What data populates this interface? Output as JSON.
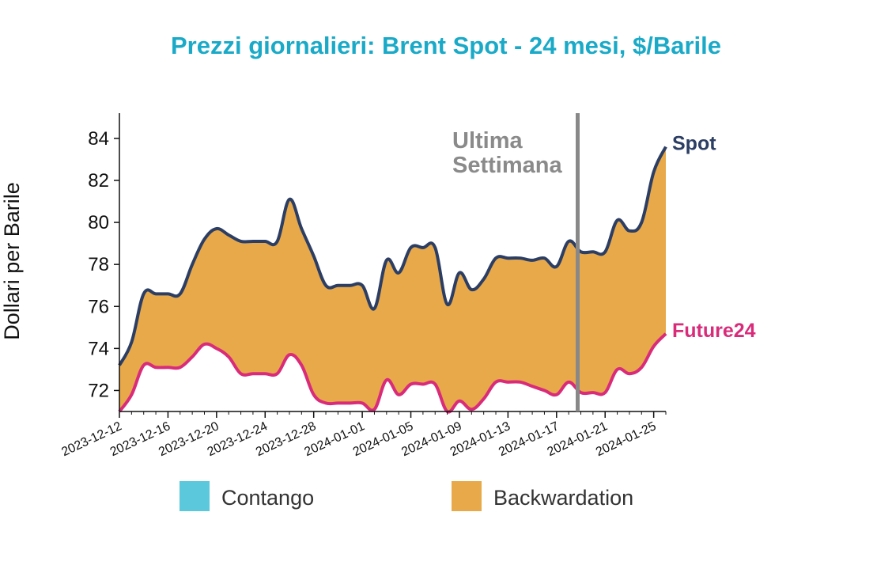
{
  "chart_data": {
    "type": "area",
    "title": "Prezzi giornalieri: Brent Spot - 24 mesi, $/Barile",
    "ylabel": "Dollari per Barile",
    "xlabel": "",
    "ylim": [
      71,
      85.2
    ],
    "yticks": [
      72,
      74,
      76,
      78,
      80,
      82,
      84
    ],
    "xlim": [
      "2023-12-12",
      "2024-01-26"
    ],
    "xticks": [
      "2023-12-12",
      "2023-12-16",
      "2023-12-20",
      "2023-12-24",
      "2023-12-28",
      "2024-01-01",
      "2024-01-05",
      "2024-01-09",
      "2024-01-13",
      "2024-01-17",
      "2024-01-21",
      "2024-01-25"
    ],
    "series": [
      {
        "name": "Spot",
        "color": "#2c3e63",
        "points": [
          [
            "2023-12-12",
            73.2
          ],
          [
            "2023-12-13",
            74.3
          ],
          [
            "2023-12-14",
            76.6
          ],
          [
            "2023-12-15",
            76.6
          ],
          [
            "2023-12-16",
            76.6
          ],
          [
            "2023-12-17",
            76.6
          ],
          [
            "2023-12-18",
            78.0
          ],
          [
            "2023-12-19",
            79.2
          ],
          [
            "2023-12-20",
            79.7
          ],
          [
            "2023-12-21",
            79.4
          ],
          [
            "2023-12-22",
            79.1
          ],
          [
            "2023-12-23",
            79.1
          ],
          [
            "2023-12-24",
            79.1
          ],
          [
            "2023-12-25",
            79.1
          ],
          [
            "2023-12-26",
            81.1
          ],
          [
            "2023-12-27",
            79.7
          ],
          [
            "2023-12-28",
            78.4
          ],
          [
            "2023-12-29",
            77.0
          ],
          [
            "2023-12-30",
            77.0
          ],
          [
            "2023-12-31",
            77.0
          ],
          [
            "2024-01-01",
            77.0
          ],
          [
            "2024-01-02",
            75.9
          ],
          [
            "2024-01-03",
            78.2
          ],
          [
            "2024-01-04",
            77.6
          ],
          [
            "2024-01-05",
            78.8
          ],
          [
            "2024-01-06",
            78.8
          ],
          [
            "2024-01-07",
            78.8
          ],
          [
            "2024-01-08",
            76.1
          ],
          [
            "2024-01-09",
            77.6
          ],
          [
            "2024-01-10",
            76.8
          ],
          [
            "2024-01-11",
            77.3
          ],
          [
            "2024-01-12",
            78.3
          ],
          [
            "2024-01-13",
            78.3
          ],
          [
            "2024-01-14",
            78.3
          ],
          [
            "2024-01-15",
            78.2
          ],
          [
            "2024-01-16",
            78.3
          ],
          [
            "2024-01-17",
            77.9
          ],
          [
            "2024-01-18",
            79.1
          ],
          [
            "2024-01-19",
            78.6
          ],
          [
            "2024-01-20",
            78.6
          ],
          [
            "2024-01-21",
            78.6
          ],
          [
            "2024-01-22",
            80.1
          ],
          [
            "2024-01-23",
            79.6
          ],
          [
            "2024-01-24",
            80.0
          ],
          [
            "2024-01-25",
            82.4
          ],
          [
            "2024-01-26",
            83.6
          ]
        ]
      },
      {
        "name": "Future24",
        "color": "#d92b7a",
        "points": [
          [
            "2023-12-12",
            71.0
          ],
          [
            "2023-12-13",
            71.8
          ],
          [
            "2023-12-14",
            73.2
          ],
          [
            "2023-12-15",
            73.1
          ],
          [
            "2023-12-16",
            73.1
          ],
          [
            "2023-12-17",
            73.1
          ],
          [
            "2023-12-18",
            73.6
          ],
          [
            "2023-12-19",
            74.2
          ],
          [
            "2023-12-20",
            74.0
          ],
          [
            "2023-12-21",
            73.6
          ],
          [
            "2023-12-22",
            72.8
          ],
          [
            "2023-12-23",
            72.8
          ],
          [
            "2023-12-24",
            72.8
          ],
          [
            "2023-12-25",
            72.8
          ],
          [
            "2023-12-26",
            73.7
          ],
          [
            "2023-12-27",
            73.2
          ],
          [
            "2023-12-28",
            71.8
          ],
          [
            "2023-12-29",
            71.4
          ],
          [
            "2023-12-30",
            71.4
          ],
          [
            "2023-12-31",
            71.4
          ],
          [
            "2024-01-01",
            71.4
          ],
          [
            "2024-01-02",
            71.1
          ],
          [
            "2024-01-03",
            72.5
          ],
          [
            "2024-01-04",
            71.8
          ],
          [
            "2024-01-05",
            72.3
          ],
          [
            "2024-01-06",
            72.3
          ],
          [
            "2024-01-07",
            72.3
          ],
          [
            "2024-01-08",
            71.0
          ],
          [
            "2024-01-09",
            71.5
          ],
          [
            "2024-01-10",
            71.1
          ],
          [
            "2024-01-11",
            71.6
          ],
          [
            "2024-01-12",
            72.4
          ],
          [
            "2024-01-13",
            72.4
          ],
          [
            "2024-01-14",
            72.4
          ],
          [
            "2024-01-15",
            72.2
          ],
          [
            "2024-01-16",
            72.0
          ],
          [
            "2024-01-17",
            71.8
          ],
          [
            "2024-01-18",
            72.4
          ],
          [
            "2024-01-19",
            71.9
          ],
          [
            "2024-01-20",
            71.9
          ],
          [
            "2024-01-21",
            71.9
          ],
          [
            "2024-01-22",
            73.0
          ],
          [
            "2024-01-23",
            72.8
          ],
          [
            "2024-01-24",
            73.1
          ],
          [
            "2024-01-25",
            74.1
          ],
          [
            "2024-01-26",
            74.7
          ]
        ]
      }
    ],
    "fill_between": {
      "contango_color": "#5bc8dc",
      "backwardation_color": "#e8a94a"
    },
    "annotation": {
      "text_line1": "Ultima",
      "text_line2": "Settimana",
      "x": "2024-01-19",
      "color": "#888888"
    },
    "legend": {
      "placement": "bottom",
      "items": [
        {
          "label": "Contango",
          "color": "#5bc8dc"
        },
        {
          "label": "Backwardation",
          "color": "#e8a94a"
        }
      ]
    },
    "title_color": "#1aaac8",
    "grid": false
  }
}
